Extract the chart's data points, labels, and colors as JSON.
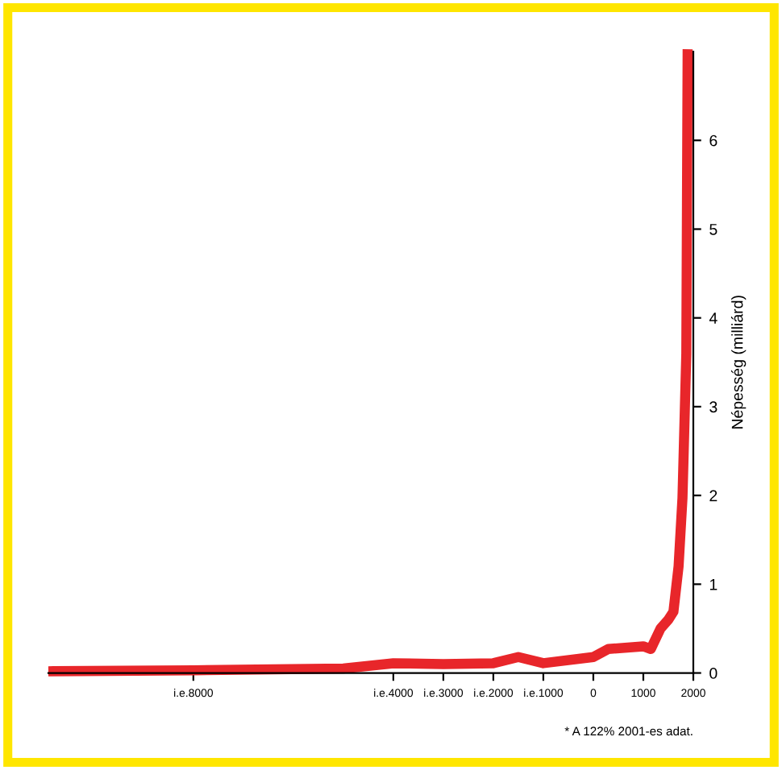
{
  "chart_data": {
    "type": "line",
    "ylabel": "Népesség (milliárd)",
    "annotations": [
      "* A 122% 2001-es adat."
    ],
    "series": [
      {
        "color": "#e8262a",
        "x": [
          -10800,
          -8000,
          -5000,
          -4000,
          -3000,
          -2000,
          -1500,
          -1000,
          0,
          300,
          1000,
          1150,
          1344,
          1500,
          1602,
          1705,
          1783,
          1860,
          1886
        ],
        "values": [
          0.02,
          0.03,
          0.05,
          0.11,
          0.1,
          0.11,
          0.18,
          0.11,
          0.18,
          0.27,
          0.3,
          0.27,
          0.5,
          0.6,
          0.69,
          1.2,
          1.97,
          3.6,
          6.97
        ]
      }
    ],
    "xlim": [
      -10900,
      2000
    ],
    "xticks": [
      {
        "value": -8000,
        "label": "i.e.8000"
      },
      {
        "value": -4000,
        "label": "i.e.4000"
      },
      {
        "value": -3000,
        "label": "i.e.3000"
      },
      {
        "value": -2000,
        "label": "i.e.2000"
      },
      {
        "value": -1000,
        "label": "i.e.1000"
      },
      0,
      1000,
      2000
    ],
    "ylim": [
      0,
      7
    ],
    "yticks": [
      0,
      1,
      2,
      3,
      4,
      5,
      6
    ],
    "grid": false,
    "legend": false,
    "marker": "none",
    "line_style": "solid"
  }
}
